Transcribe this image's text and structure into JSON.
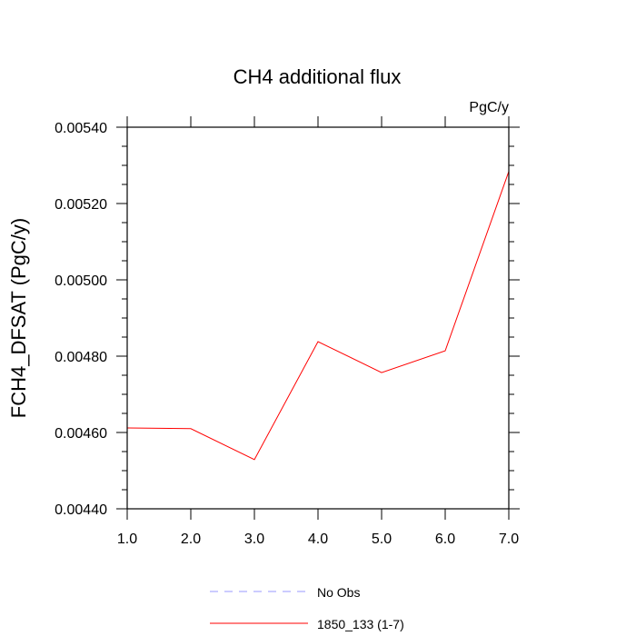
{
  "chart_data": {
    "type": "line",
    "title": "CH4 additional flux",
    "units": "PgC/y",
    "ylabel": "FCH4_DFSAT  (PgC/y)",
    "xlabel": "",
    "x": [
      1,
      2,
      3,
      4,
      5,
      6,
      7
    ],
    "x_tick_labels": [
      "1.0",
      "2.0",
      "3.0",
      "4.0",
      "5.0",
      "6.0",
      "7.0"
    ],
    "y_tick_labels": [
      "0.00440",
      "0.00460",
      "0.00480",
      "0.00500",
      "0.00520",
      "0.00540"
    ],
    "y_ticks": [
      0.0044,
      0.0046,
      0.0048,
      0.005,
      0.0052,
      0.0054
    ],
    "xlim": [
      1,
      7
    ],
    "ylim": [
      0.0044,
      0.0054
    ],
    "grid": false,
    "legend_position": "bottom",
    "series": [
      {
        "name": "1850_133 (1-7)",
        "color": "#ff0000",
        "style": "solid",
        "values": [
          0.004612,
          0.00461,
          0.004529,
          0.004838,
          0.004757,
          0.004814,
          0.005284
        ]
      }
    ],
    "legend": [
      {
        "label": "No Obs",
        "color": "#9999ff",
        "style": "dashed"
      },
      {
        "label": "1850_133 (1-7)",
        "color": "#ff0000",
        "style": "solid"
      }
    ]
  }
}
